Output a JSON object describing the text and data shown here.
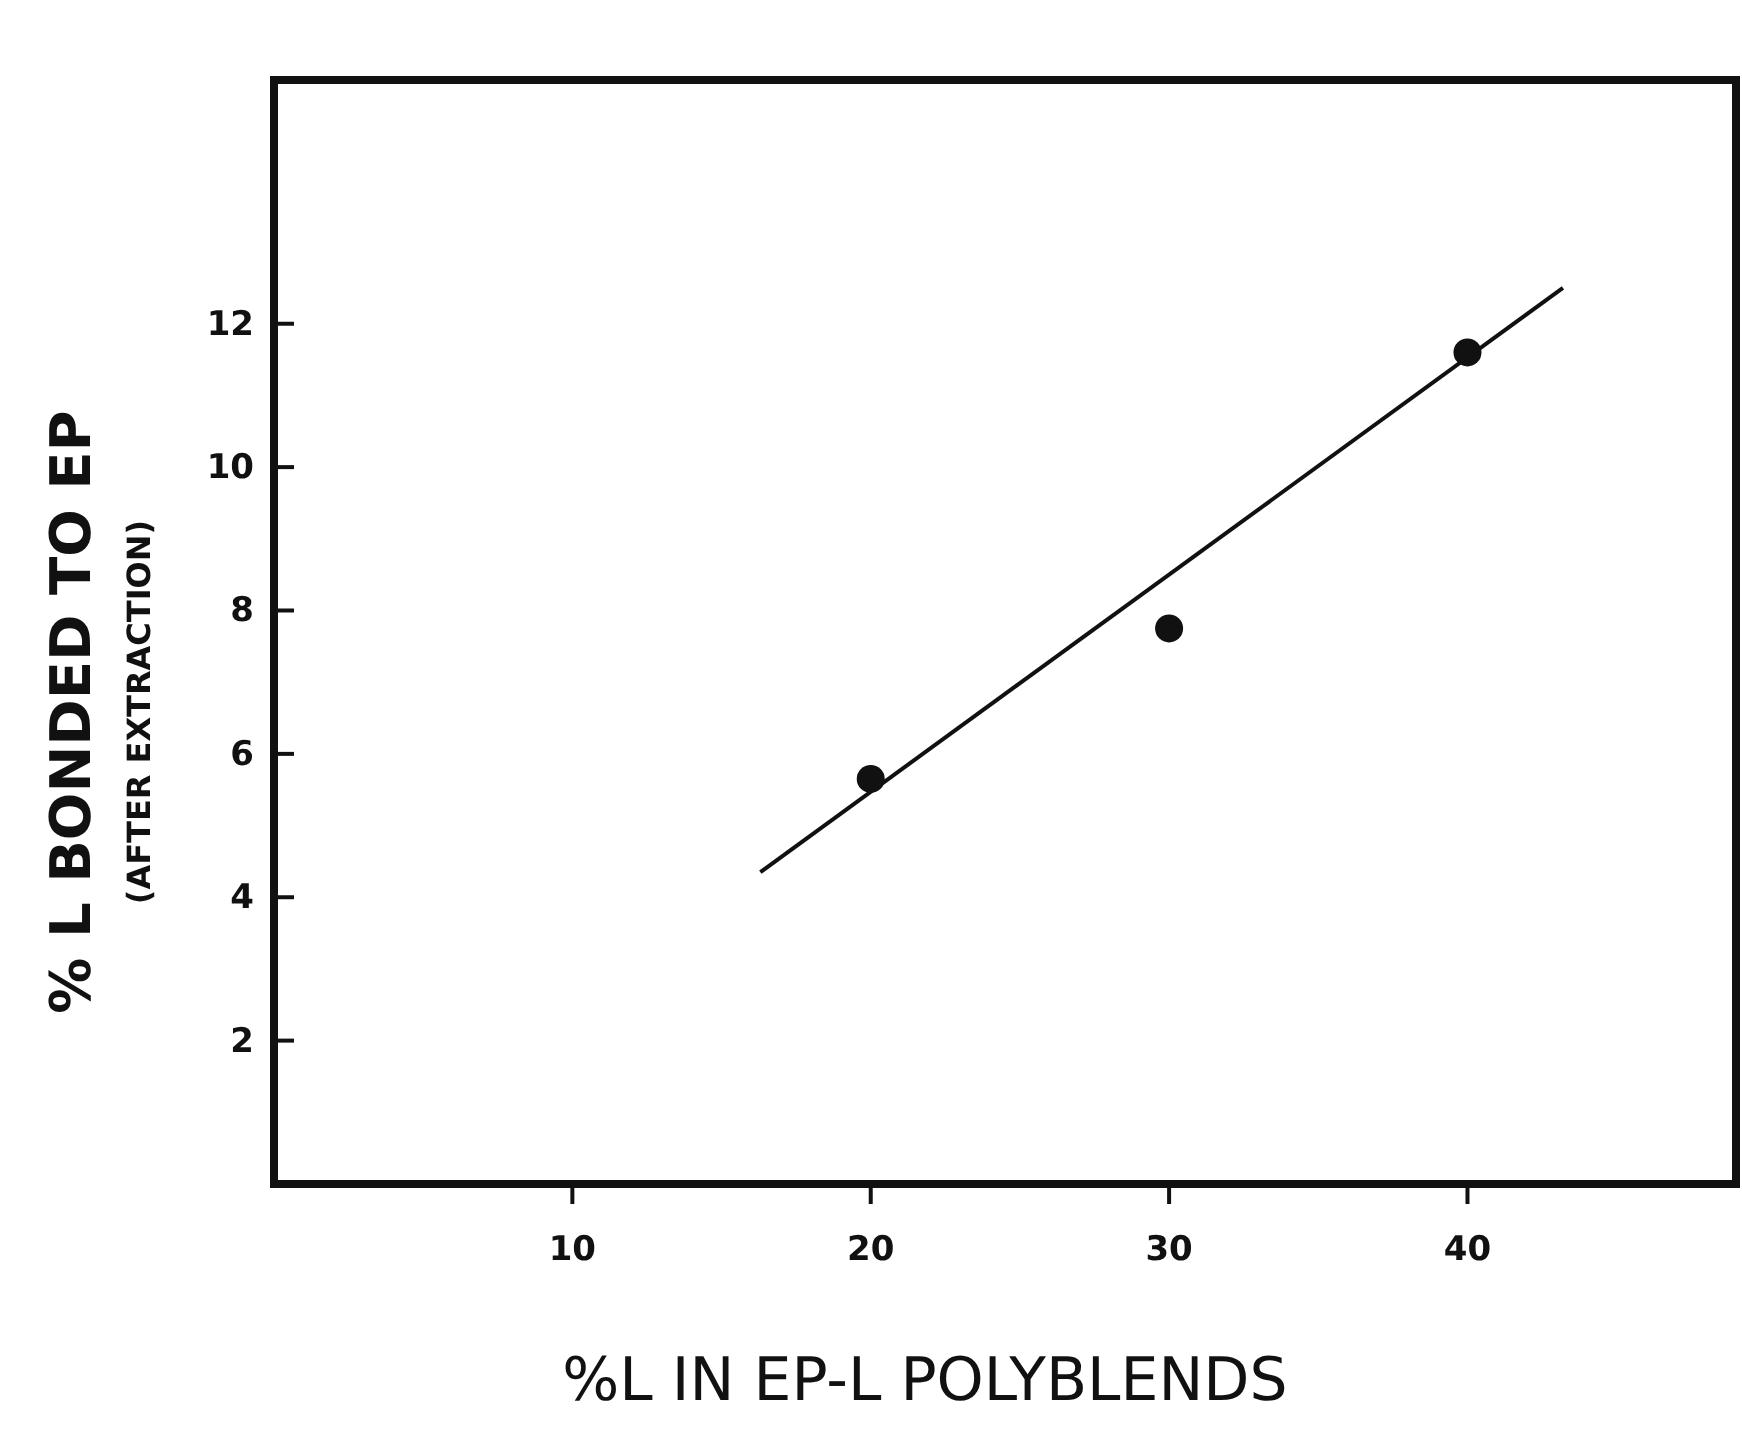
{
  "chart_data": {
    "type": "scatter",
    "xlabel": "%L IN EP-L POLYBLENDS",
    "ylabel": "% L BONDED TO EP\n(AFTER EXTRACTION)",
    "xlim": [
      0,
      49
    ],
    "ylim": [
      0,
      15.4
    ],
    "xticks": [
      10,
      20,
      30,
      40
    ],
    "yticks": [
      2,
      4,
      6,
      8,
      10,
      12
    ],
    "grid": false,
    "series": [
      {
        "color": "#111111",
        "marker": "circle",
        "x": [
          20,
          30,
          40
        ],
        "values": [
          5.65,
          7.75,
          11.6
        ]
      },
      {
        "type": "line",
        "marker": "none",
        "color": "#111111",
        "x": [
          16.3,
          43.2
        ],
        "values": [
          4.35,
          12.5
        ],
        "line_style": "solid"
      }
    ]
  }
}
